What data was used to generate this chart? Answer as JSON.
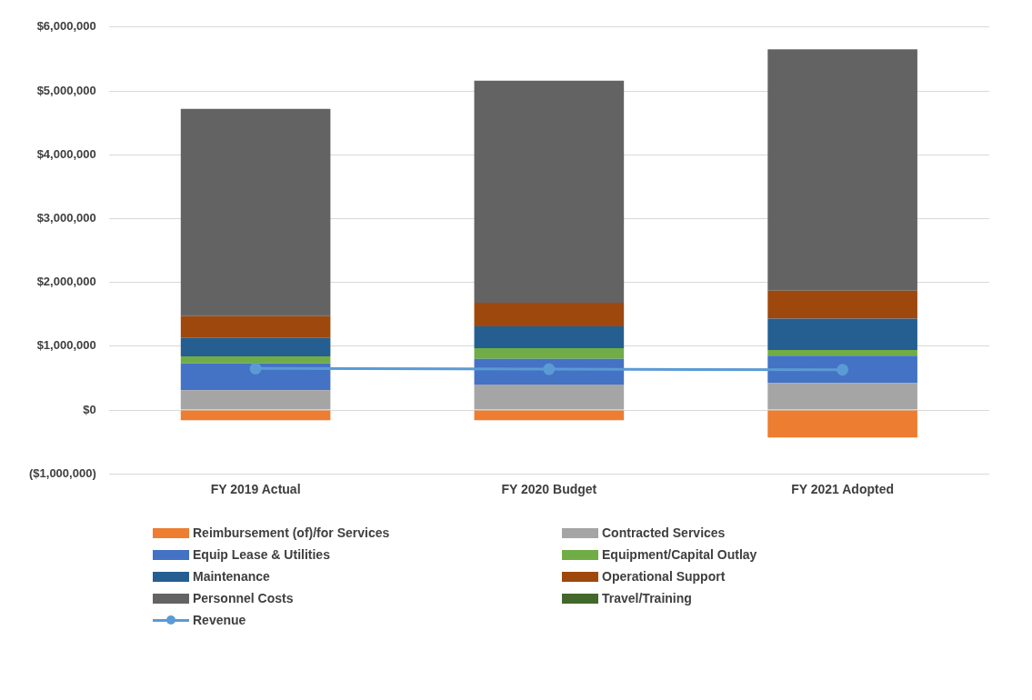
{
  "chart_data": {
    "type": "bar",
    "stacked": true,
    "categories": [
      "FY 2019 Actual",
      "FY 2020 Budget",
      "FY 2021 Adopted"
    ],
    "series": [
      {
        "name": "Reimbursement (of)/for Services",
        "color": "#ed7d31",
        "values": [
          -160000,
          -160000,
          -430000
        ]
      },
      {
        "name": "Contracted Services",
        "color": "#a5a5a5",
        "values": [
          310000,
          400000,
          420000
        ]
      },
      {
        "name": "Equip Lease & Utilities",
        "color": "#4472c4",
        "values": [
          420000,
          400000,
          430000
        ]
      },
      {
        "name": "Equipment/Capital Outlay",
        "color": "#70ad47",
        "values": [
          110000,
          170000,
          90000
        ]
      },
      {
        "name": "Maintenance",
        "color": "#255e91",
        "values": [
          290000,
          340000,
          490000
        ]
      },
      {
        "name": "Operational Support",
        "color": "#9e480e",
        "values": [
          340000,
          370000,
          440000
        ]
      },
      {
        "name": "Personnel Costs",
        "color": "#636363",
        "values": [
          3250000,
          3480000,
          3780000
        ]
      },
      {
        "name": "Travel/Training",
        "color": "#43682b",
        "values": [
          0,
          0,
          0
        ]
      },
      {
        "name": "Revenue",
        "color": "#5b9bd5",
        "type": "line",
        "marker": "circle",
        "values": [
          650000,
          640000,
          630000
        ]
      }
    ],
    "ylim": [
      -1000000,
      6000000
    ],
    "yticks": [
      {
        "value": -1000000,
        "label": "($1,000,000)"
      },
      {
        "value": 0,
        "label": "$0"
      },
      {
        "value": 1000000,
        "label": "$1,000,000"
      },
      {
        "value": 2000000,
        "label": "$2,000,000"
      },
      {
        "value": 3000000,
        "label": "$3,000,000"
      },
      {
        "value": 4000000,
        "label": "$4,000,000"
      },
      {
        "value": 5000000,
        "label": "$5,000,000"
      },
      {
        "value": 6000000,
        "label": "$6,000,000"
      }
    ],
    "grid": "y",
    "legend": "bottom"
  }
}
